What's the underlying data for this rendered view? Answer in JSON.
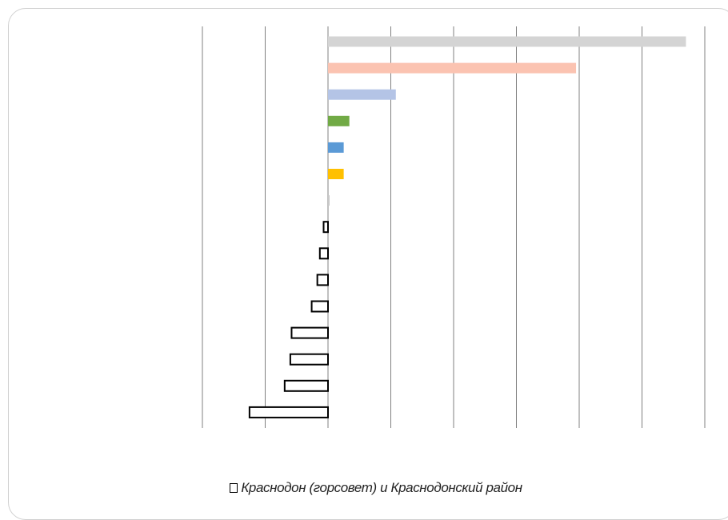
{
  "chart_data": {
    "type": "bar",
    "orientation": "horizontal",
    "xlim": [
      -2,
      6
    ],
    "x_tick_step": 1,
    "grid": true,
    "legend_position": "bottom",
    "colored_bars": [
      {
        "value": 5.7,
        "color": "#d4d4d4"
      },
      {
        "value": 3.95,
        "color": "#fbc3b1"
      },
      {
        "value": 1.08,
        "color": "#b4c4e6"
      },
      {
        "value": 0.34,
        "color": "#71aa45"
      },
      {
        "value": 0.25,
        "color": "#5b9ad6"
      },
      {
        "value": 0.25,
        "color": "#ffc000"
      },
      {
        "value": 0.02,
        "color": "#c8c8c8"
      }
    ],
    "series": [
      {
        "name": "Краснодон (горсовет) и Краснодонский район",
        "fill": "#ffffff",
        "stroke": "#000000",
        "values": [
          -0.07,
          -0.13,
          -0.17,
          -0.26,
          -0.58,
          -0.6,
          -0.69,
          -1.25
        ]
      }
    ]
  }
}
